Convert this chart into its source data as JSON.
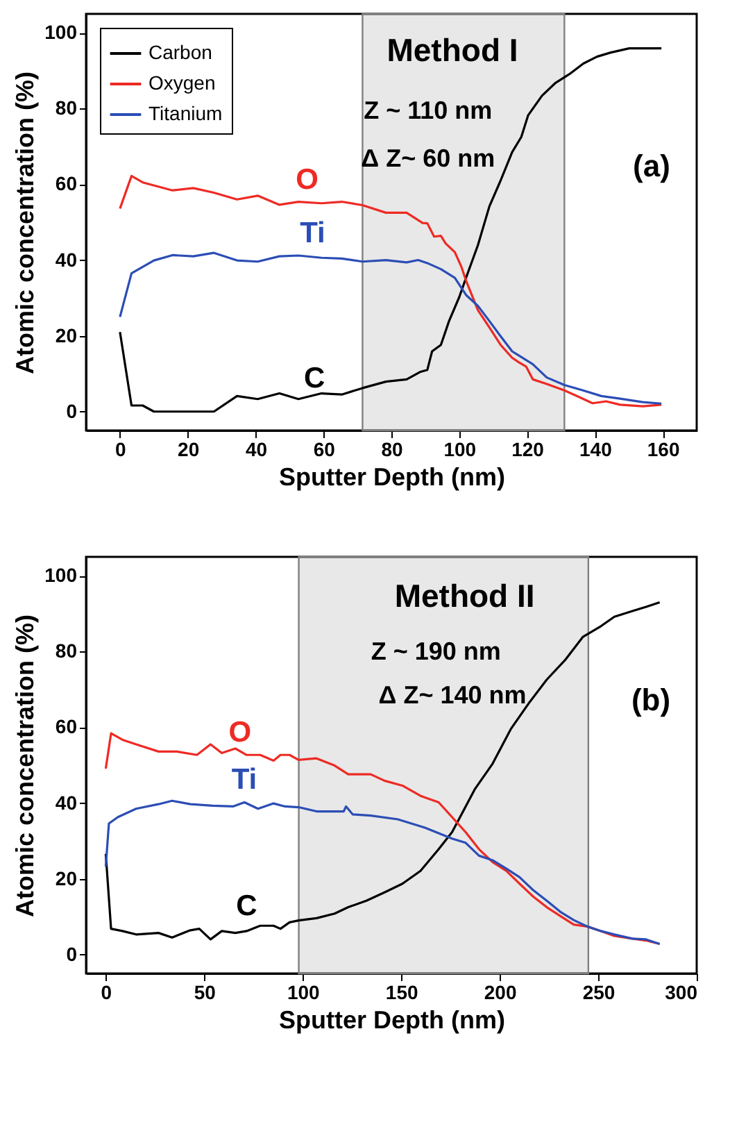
{
  "chart_data": [
    {
      "type": "line",
      "xlabel": "Sputter Depth (nm)",
      "ylabel": "Atomic concentration (%)",
      "legend": "top left",
      "xlim": [
        -10,
        170
      ],
      "ylim": [
        -5,
        105
      ],
      "xticks": [
        0,
        20,
        40,
        60,
        80,
        100,
        120,
        140,
        160
      ],
      "yticks": [
        0,
        20,
        40,
        60,
        80,
        100
      ],
      "series": [
        {
          "name": "Carbon",
          "color": "#000000",
          "x": [
            0,
            3.4,
            6.7,
            10,
            16.2,
            27.7,
            34.5,
            40.6,
            47,
            52.6,
            59.4,
            65.4,
            71.5,
            78.4,
            84.5,
            88.6,
            90.6,
            92,
            94.6,
            97,
            100,
            102,
            105.5,
            108.9,
            112.2,
            115.6,
            118.3,
            120.3,
            124.4,
            128.4,
            132.5,
            136.6,
            140.6,
            144.7,
            150.1,
            159.6
          ],
          "values": [
            21,
            1.6,
            1.6,
            0,
            0,
            0,
            4.1,
            3.3,
            4.8,
            3.3,
            4.8,
            4.5,
            6.2,
            7.9,
            8.5,
            10.5,
            11,
            15.9,
            17.6,
            23.9,
            30.2,
            35.3,
            43.9,
            54.2,
            61,
            68.5,
            72.5,
            78.2,
            83.4,
            86.8,
            89.1,
            91.9,
            93.7,
            94.8,
            95.9,
            95.9
          ]
        },
        {
          "name": "Oxygen",
          "color": "#ee2a24",
          "x": [
            0,
            3.4,
            6.7,
            15.5,
            21.6,
            27.7,
            34.5,
            40.6,
            47,
            52.6,
            59.4,
            65.4,
            71.5,
            78.4,
            84.5,
            89.2,
            90.6,
            92.6,
            94.6,
            96,
            98.7,
            100.7,
            102,
            105.5,
            108.9,
            112.2,
            115.6,
            117.6,
            119.7,
            121.7,
            125.8,
            131,
            135.2,
            139.3,
            143.3,
            147.4,
            154.1,
            159.6
          ],
          "values": [
            53.6,
            62.2,
            60.5,
            58.4,
            59,
            57.8,
            56,
            57,
            54.6,
            55.4,
            55,
            55.4,
            54.5,
            52.5,
            52.5,
            49.8,
            49.7,
            46.2,
            46.4,
            44.4,
            42.1,
            38.1,
            34.6,
            26.8,
            22.2,
            17.6,
            14.2,
            13,
            11.9,
            8.5,
            7.3,
            5.6,
            3.9,
            2.2,
            2.7,
            1.8,
            1.4,
            1.8
          ]
        },
        {
          "name": "Titanium",
          "color": "#2b4db5",
          "x": [
            0,
            3.4,
            6.7,
            10,
            15.5,
            21.6,
            27.7,
            34.5,
            40.6,
            47,
            52.6,
            59.4,
            65.4,
            71.5,
            78.4,
            84.5,
            87.9,
            90.6,
            94.6,
            98.7,
            102,
            105.5,
            108.9,
            112.2,
            115.6,
            121.7,
            125.8,
            131,
            136.5,
            141.9,
            147.4,
            154.1,
            159.6
          ],
          "values": [
            25,
            36.5,
            38.2,
            39.9,
            41.3,
            41,
            41.9,
            39.9,
            39.6,
            41,
            41.2,
            40.6,
            40.4,
            39.6,
            40,
            39.4,
            40,
            39.2,
            37.6,
            35.3,
            30.8,
            27.9,
            23.9,
            19.9,
            15.9,
            12.5,
            9,
            7,
            5.6,
            4.1,
            3.4,
            2.5,
            2.1
          ]
        }
      ],
      "bands": [
        {
          "axis": "x",
          "from": 71.5,
          "to": 131,
          "color": "#808080"
        }
      ],
      "annotations": [
        "Method I",
        "Z ~ 110 nm",
        "Δ Z~ 60 nm",
        "(a)",
        "O",
        "Ti",
        "C"
      ]
    },
    {
      "type": "line",
      "xlabel": "Sputter Depth (nm)",
      "ylabel": "Atomic concentration (%)",
      "legend": "top left",
      "xlim": [
        -10,
        300
      ],
      "ylim": [
        -5,
        105
      ],
      "xticks": [
        0,
        50,
        100,
        150,
        200,
        250,
        300
      ],
      "yticks": [
        0,
        20,
        40,
        60,
        80,
        100
      ],
      "series": [
        {
          "name": "Carbon",
          "color": "#000000",
          "x": [
            0,
            2.7,
            8.5,
            15.4,
            26.8,
            33.7,
            42.9,
            47.5,
            53.2,
            58.9,
            65.8,
            71.5,
            78.4,
            85.2,
            88.7,
            93.3,
            97.9,
            107,
            116.2,
            123.1,
            132.3,
            141.5,
            150.6,
            159.8,
            169,
            175.8,
            180.4,
            187.3,
            196.4,
            205.6,
            214.7,
            223.9,
            233.1,
            242.3,
            251.4,
            258.2,
            267.4,
            274.3,
            281.2
          ],
          "values": [
            26.6,
            6.8,
            6.2,
            5.3,
            5.7,
            4.5,
            6.4,
            6.8,
            4,
            6.2,
            5.7,
            6.2,
            7.6,
            7.6,
            6.8,
            8.5,
            9,
            9.6,
            10.8,
            12.5,
            14.2,
            16.4,
            18.7,
            22.1,
            27.8,
            32.3,
            36.8,
            43.6,
            50.4,
            59.5,
            66.3,
            72.6,
            77.7,
            83.9,
            86.7,
            89.2,
            90.7,
            91.8,
            93
          ]
        },
        {
          "name": "Oxygen",
          "color": "#ee2a24",
          "x": [
            0,
            2.7,
            8.5,
            15.4,
            26.8,
            36,
            46.3,
            53.2,
            58.9,
            65.8,
            71.5,
            78.4,
            85.2,
            88.7,
            93.3,
            97.9,
            107,
            116.2,
            123.1,
            134.5,
            141.5,
            150.6,
            159.8,
            169,
            175.8,
            182.7,
            189.5,
            196.4,
            203.3,
            210.1,
            217,
            223.9,
            230.7,
            237.6,
            244.5,
            251.4,
            258.2,
            267.4,
            274.3,
            281.2
          ],
          "values": [
            49.1,
            58.4,
            56.7,
            55.5,
            53.6,
            53.6,
            52.7,
            55.5,
            53.2,
            54.4,
            52.7,
            52.7,
            51.2,
            52.7,
            52.7,
            51.4,
            51.8,
            49.9,
            47.6,
            47.6,
            45.9,
            44.6,
            41.9,
            40.2,
            36.3,
            32.3,
            27.8,
            24.4,
            22.1,
            18.7,
            15.3,
            12.5,
            10.2,
            7.9,
            7.4,
            6.2,
            4.9,
            4.2,
            3.7,
            2.8
          ]
        },
        {
          "name": "Titanium",
          "color": "#2b4db5",
          "x": [
            0,
            1.6,
            6.2,
            15.4,
            26.8,
            33.7,
            42.9,
            54.3,
            64.6,
            70.4,
            77.3,
            85.2,
            91,
            97.9,
            107,
            120.8,
            122,
            125.4,
            134.6,
            148.3,
            162,
            175.8,
            182.7,
            189.5,
            196.4,
            203.3,
            210.1,
            217,
            223.9,
            230.7,
            237.6,
            244.5,
            251.4,
            258.2,
            267.4,
            274.3,
            281.2
          ],
          "values": [
            23.2,
            34.6,
            36.3,
            38.5,
            39.7,
            40.6,
            39.7,
            39.3,
            39.1,
            40.2,
            38.5,
            39.9,
            39.1,
            38.9,
            37.8,
            37.8,
            39.1,
            37,
            36.7,
            35.7,
            33.5,
            30.6,
            29.5,
            26.1,
            24.9,
            22.7,
            20.4,
            17,
            14.2,
            11.3,
            9.1,
            7.4,
            6.2,
            5.3,
            4.2,
            4,
            2.8
          ]
        }
      ],
      "bands": [
        {
          "axis": "x",
          "from": 98,
          "to": 245,
          "color": "#808080"
        }
      ],
      "annotations": [
        "Method II",
        "Z ~ 190 nm",
        "Δ Z~ 140 nm",
        "(b)",
        "O",
        "Ti",
        "C"
      ]
    }
  ]
}
